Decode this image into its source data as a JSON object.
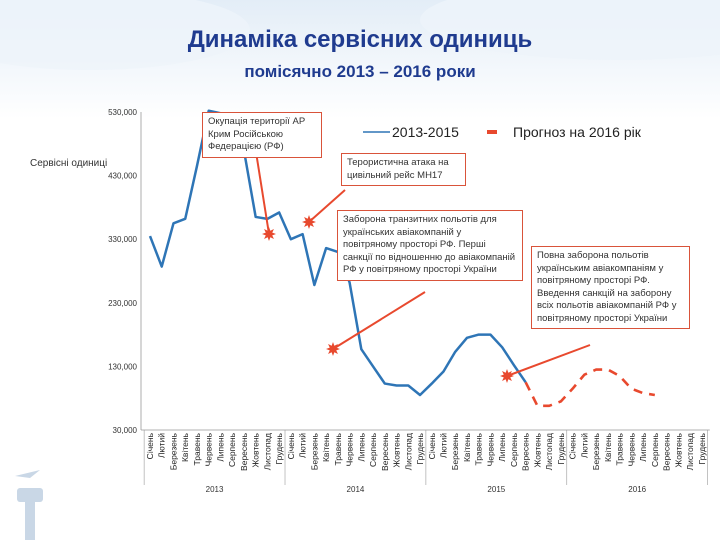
{
  "header": {
    "title": "Динаміка сервісних одиниць",
    "subtitle": "помісячно 2013 – 2016 роки"
  },
  "colors": {
    "actual": "#2e75b6",
    "forecast": "#e8492e",
    "title": "#1f3b8f",
    "annotation_border": "#d9533a"
  },
  "chart_data": {
    "type": "line",
    "ylabel": "Сервісні одиниці",
    "ylim": [
      30000,
      530000
    ],
    "yticks": [
      "530,000",
      "430,000",
      "330,000",
      "230,000",
      "130,000",
      "30,000"
    ],
    "months": [
      "Січень",
      "Лютий",
      "Березень",
      "Квітень",
      "Травень",
      "Червень",
      "Липень",
      "Серпень",
      "Вересень",
      "Жовтень",
      "Листопад",
      "Грудень"
    ],
    "years": [
      "2013",
      "2014",
      "2015",
      "2016"
    ],
    "legend": [
      "2013-2015",
      "Прогноз на 2016 рік"
    ],
    "series": [
      {
        "name": "2013-2015",
        "values": [
          335000,
          287000,
          355000,
          362000,
          445000,
          532000,
          528000,
          512000,
          470000,
          365000,
          362000,
          372000,
          330000,
          338000,
          258000,
          316000,
          310000,
          262000,
          157000,
          130000,
          103000,
          100000,
          100000,
          85000,
          103000,
          122000,
          153000,
          175000,
          180000,
          180000,
          160000,
          132000,
          105000
        ]
      },
      {
        "name": "Прогноз на 2016 рік",
        "values": [
          null,
          null,
          null,
          null,
          null,
          null,
          null,
          null,
          null,
          null,
          null,
          null,
          null,
          null,
          null,
          null,
          null,
          null,
          null,
          null,
          null,
          null,
          null,
          null,
          null,
          null,
          null,
          null,
          null,
          null,
          null,
          null,
          105000,
          68000,
          68000,
          75000,
          95000,
          117000,
          125000,
          125000,
          115000,
          95000,
          88000,
          85000
        ]
      }
    ],
    "event_markers": [
      {
        "label": "Окупація території АР Крим Російською Федерацією (РФ)",
        "x": "Лютий 2014"
      },
      {
        "label": "Терористична атака на цивільний рейс МН17",
        "x": "Липень 2014"
      },
      {
        "label": "Заборона транзитних польотів для українських авіакомпаній у повітряному просторі РФ. Перші санкції по відношенню до авіакомпаній РФ у повітряному просторі України",
        "x": "Листопад 2014"
      },
      {
        "label": "Повна заборона польотів українським авіакомпаніям у повітряному просторі РФ. Введення санкцій на заборону всіх польотів авіакомпаній РФ у повітряному просторі України",
        "x": "Жовтень 2015"
      }
    ],
    "grid": false
  }
}
